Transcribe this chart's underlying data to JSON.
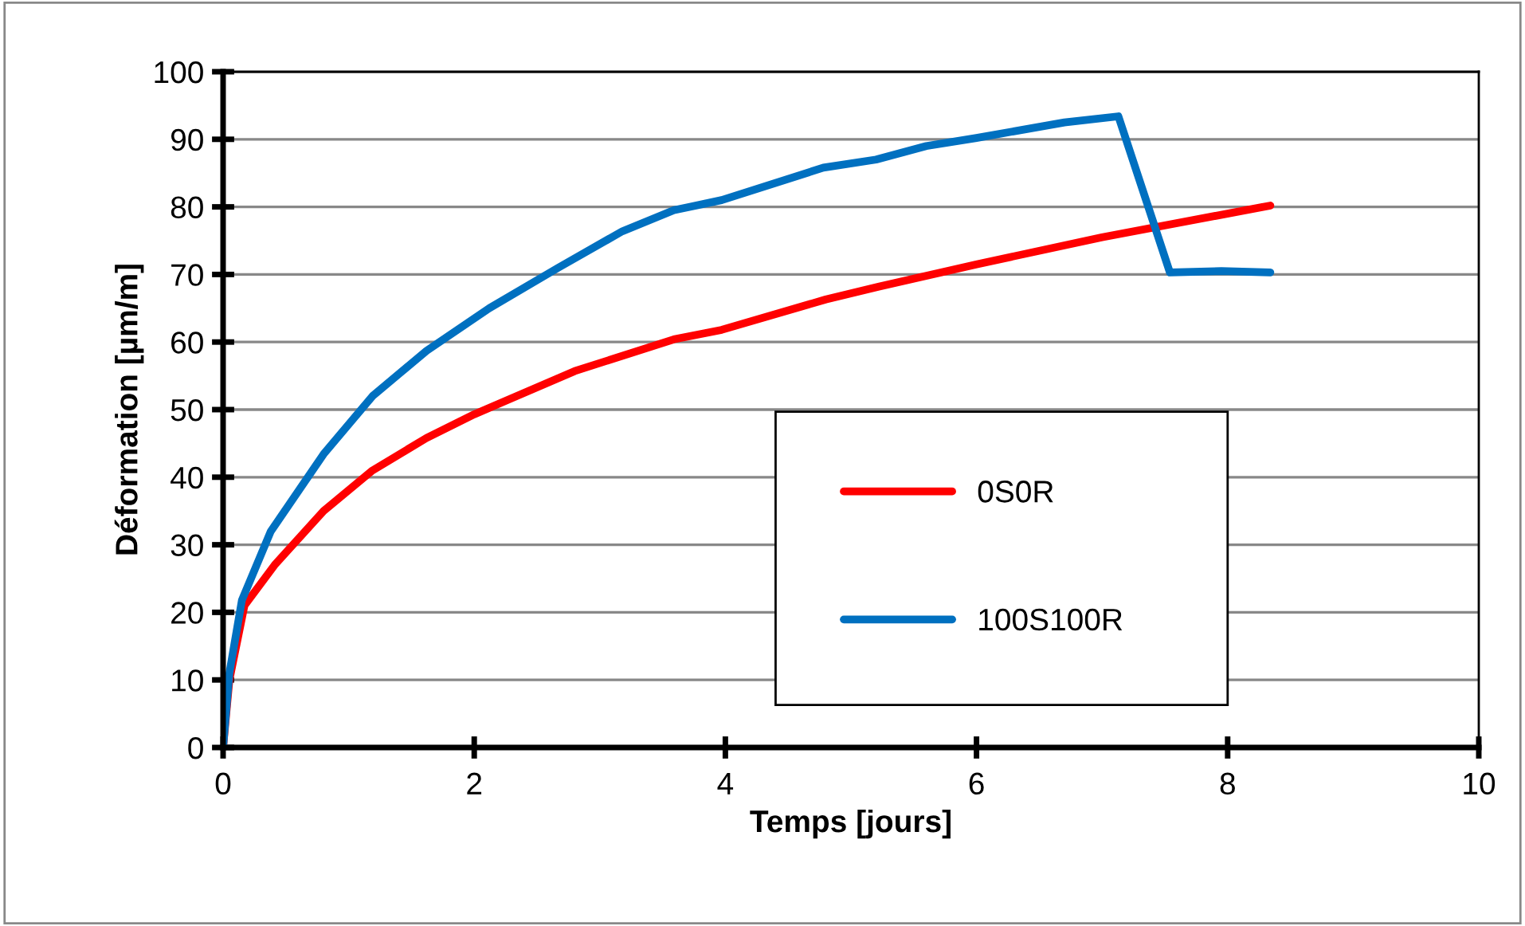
{
  "chart_data": {
    "type": "line",
    "xlabel": "Temps [jours]",
    "ylabel": "Déformation [µm/m]",
    "xlim": [
      0,
      10
    ],
    "xticks": [
      0,
      2,
      4,
      6,
      8,
      10
    ],
    "ylim": [
      0,
      100
    ],
    "yticks": [
      0,
      10,
      20,
      30,
      40,
      50,
      60,
      70,
      80,
      90,
      100
    ],
    "grid": "y",
    "legend": "right",
    "marker": "none",
    "line_style": "solid",
    "series": [
      {
        "name": "0S0R",
        "color": "#ff0000",
        "x": [
          0,
          0.05,
          0.17,
          0.41,
          0.8,
          1.19,
          1.62,
          2.0,
          2.8,
          3.59,
          3.97,
          4.8,
          5.22,
          6.0,
          7.0,
          8.34
        ],
        "values": [
          0,
          10,
          21,
          27,
          35,
          41,
          45.8,
          49.3,
          55.7,
          60.4,
          61.8,
          66.3,
          68.2,
          71.5,
          75.5,
          80.2
        ]
      },
      {
        "name": "100S100R",
        "color": "#0070c0",
        "x": [
          0,
          0.05,
          0.15,
          0.38,
          0.8,
          1.19,
          1.62,
          2.12,
          2.67,
          3.18,
          3.59,
          3.97,
          4.78,
          5.2,
          5.6,
          6.0,
          6.7,
          7.13,
          7.54,
          7.95,
          8.34
        ],
        "values": [
          0,
          11,
          21.8,
          32,
          43.4,
          52,
          58.7,
          65,
          71,
          76.4,
          79.5,
          81,
          85.8,
          87,
          89,
          90.2,
          92.5,
          93.4,
          70.3,
          70.5,
          70.3
        ]
      }
    ]
  }
}
